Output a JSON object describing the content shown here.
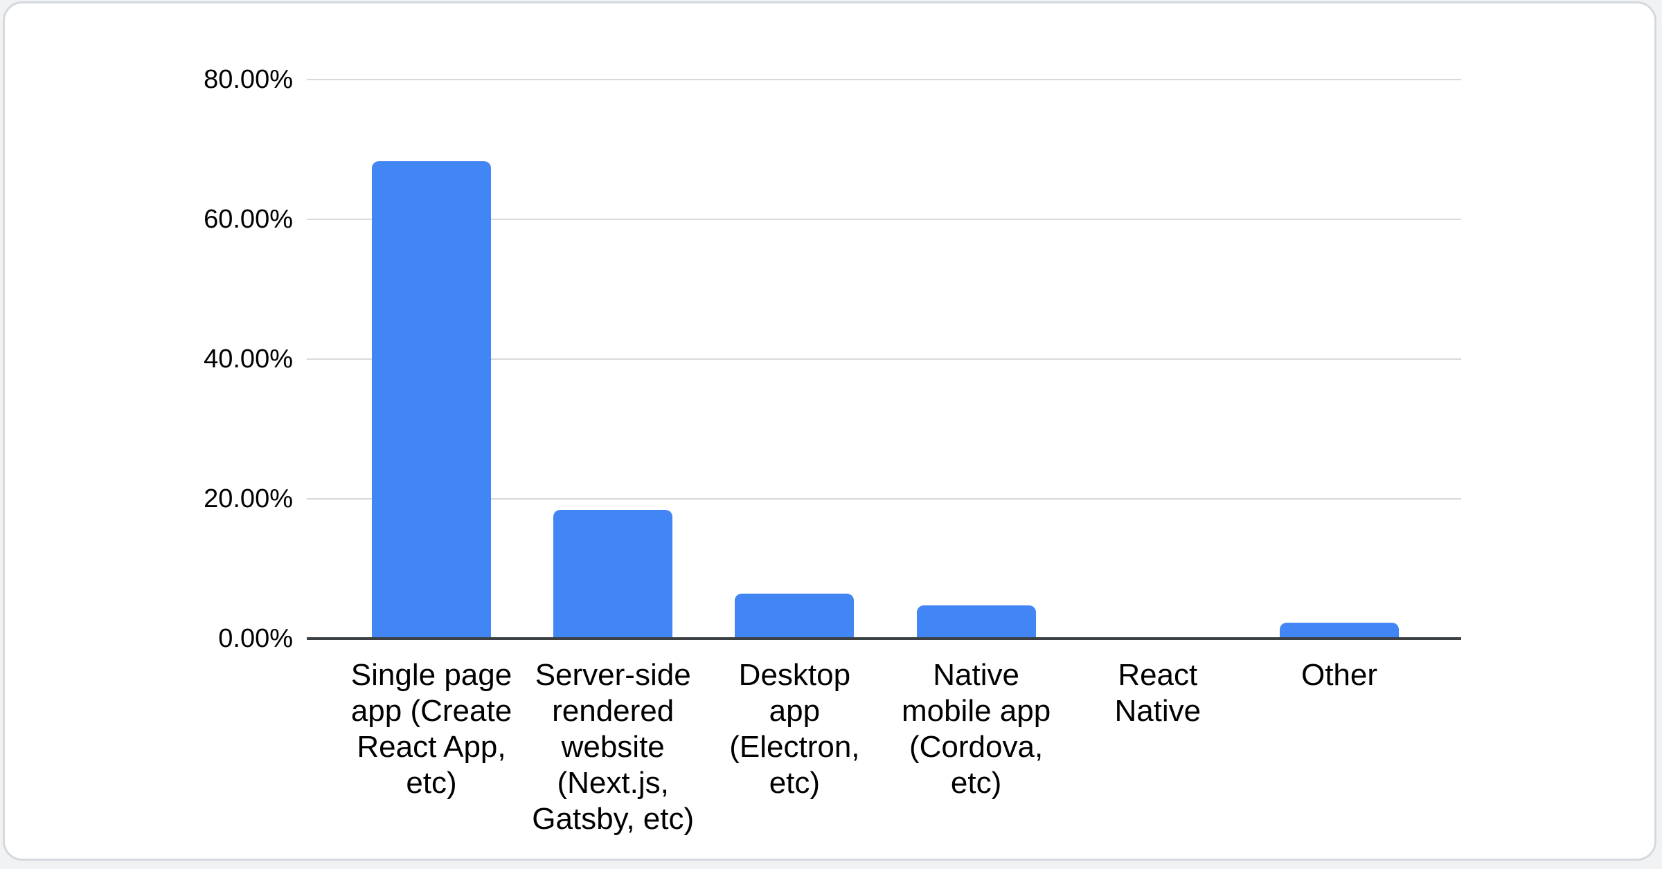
{
  "page": {
    "background_color": "#f1f2f4",
    "card_background_color": "#ffffff",
    "card_border_color": "#d5d9dd"
  },
  "chart_data": {
    "type": "bar",
    "title": "",
    "categories": [
      "Single page app (Create React App, etc)",
      "Server-side rendered website (Next.js, Gatsby, etc)",
      "Desktop app (Electron, etc)",
      "Native mobile app (Cordova, etc)",
      "React Native",
      "Other"
    ],
    "category_label_lines": [
      [
        "Single page",
        "app (Create",
        "React App,",
        "etc)"
      ],
      [
        "Server-side",
        "rendered",
        "website",
        "(Next.js,",
        "Gatsby, etc)"
      ],
      [
        "Desktop",
        "app",
        "(Electron,",
        "etc)"
      ],
      [
        "Native",
        "mobile app",
        "(Cordova,",
        "etc)"
      ],
      [
        "React",
        "Native"
      ],
      [
        "Other"
      ]
    ],
    "values": [
      68.3,
      18.4,
      6.4,
      4.8,
      0,
      2.3
    ],
    "value_unit": "%",
    "ylabel": "",
    "xlabel": "",
    "ylim": [
      0,
      80
    ],
    "ytick_labels": [
      "0.00%",
      "20.00%",
      "40.00%",
      "60.00%",
      "80.00%"
    ],
    "ytick_values": [
      0,
      20,
      40,
      60,
      80
    ],
    "grid": true,
    "legend_position": "none",
    "bar_color": "#4285f4",
    "gridline_color": "#d9d9d9",
    "axis_line_color": "#3c4043",
    "label_color": "#000000"
  }
}
